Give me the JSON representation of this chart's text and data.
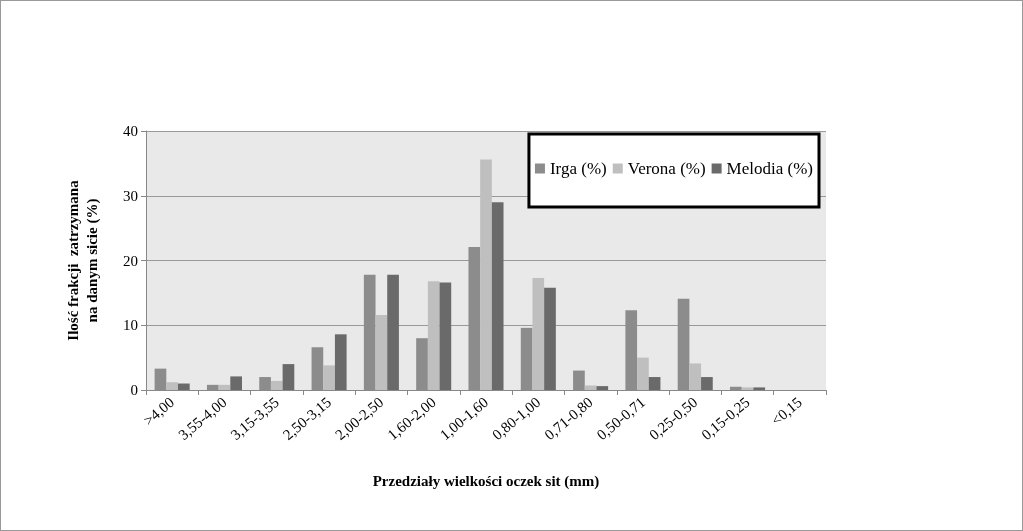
{
  "chart_data": {
    "type": "bar",
    "xlabel": "Przedziały wielkości oczek sit (mm)",
    "ylabel": "Ilość frakcji  zatrzymana\nna danym sicie (%)",
    "categories": [
      ">4,00",
      "3,55-4,00",
      "3,15-3,55",
      "2,50-3,15",
      "2,00-2,50",
      "1,60-2,00",
      "1,00-1,60",
      "0,80-1,00",
      "0,71-0,80",
      "0,50-0,71",
      "0,25-0,50",
      "0,15-0,25",
      "<0,15"
    ],
    "series": [
      {
        "name": "Irga (%)",
        "color": "#8c8c8c",
        "values": [
          3.3,
          0.8,
          2.0,
          6.6,
          17.8,
          8.0,
          22.1,
          9.6,
          3.0,
          12.3,
          14.1,
          0.5,
          0
        ]
      },
      {
        "name": "Verona (%)",
        "color": "#bfbfbf",
        "values": [
          1.2,
          0.8,
          1.4,
          3.8,
          11.6,
          16.8,
          35.6,
          17.3,
          0.7,
          5.0,
          4.1,
          0.4,
          0
        ]
      },
      {
        "name": "Melodia (%)",
        "color": "#6a6a6a",
        "values": [
          1.0,
          2.1,
          4.0,
          8.6,
          17.8,
          16.6,
          29.0,
          15.8,
          0.6,
          2.0,
          2.0,
          0.4,
          0
        ]
      }
    ],
    "ylim": [
      0,
      40
    ],
    "yticks": [
      0,
      10,
      20,
      30,
      40
    ],
    "grid": "y",
    "legend": "top right"
  }
}
